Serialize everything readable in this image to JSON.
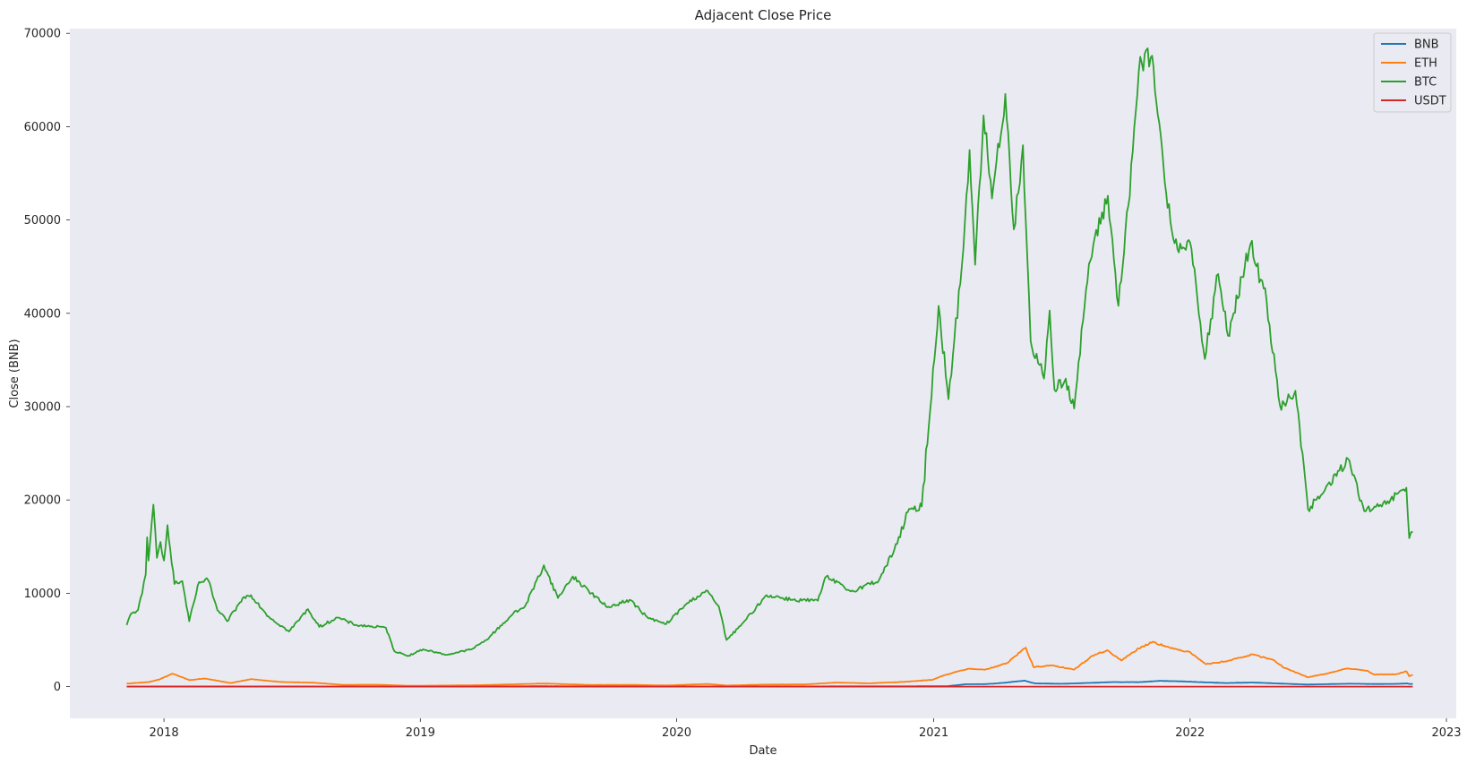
{
  "chart_data": {
    "type": "line",
    "title": "Adjacent Close Price",
    "xlabel": "Date",
    "ylabel": "Close (BNB)",
    "xlim": [
      "2017-08-20",
      "2023-01-15"
    ],
    "ylim": [
      -3400,
      70500
    ],
    "xticks": [
      "2018",
      "2019",
      "2020",
      "2021",
      "2022",
      "2023"
    ],
    "yticks": [
      "0",
      "10000",
      "20000",
      "30000",
      "40000",
      "50000",
      "60000",
      "70000"
    ],
    "grid": false,
    "legend_position": "top-right",
    "background": "#eaeaf2",
    "series": [
      {
        "name": "BNB",
        "color": "#1f77b4",
        "points": [
          [
            "2017-11-09",
            2
          ],
          [
            "2018-01-10",
            20
          ],
          [
            "2018-06-01",
            14
          ],
          [
            "2019-01-01",
            6
          ],
          [
            "2019-06-20",
            33
          ],
          [
            "2020-01-01",
            14
          ],
          [
            "2020-06-01",
            17
          ],
          [
            "2020-12-01",
            30
          ],
          [
            "2021-01-20",
            40
          ],
          [
            "2021-02-15",
            250
          ],
          [
            "2021-03-15",
            260
          ],
          [
            "2021-04-10",
            400
          ],
          [
            "2021-05-10",
            640
          ],
          [
            "2021-05-25",
            340
          ],
          [
            "2021-07-01",
            300
          ],
          [
            "2021-08-15",
            400
          ],
          [
            "2021-09-10",
            480
          ],
          [
            "2021-10-20",
            480
          ],
          [
            "2021-11-20",
            620
          ],
          [
            "2021-12-20",
            560
          ],
          [
            "2022-01-15",
            480
          ],
          [
            "2022-02-20",
            380
          ],
          [
            "2022-03-30",
            440
          ],
          [
            "2022-05-10",
            320
          ],
          [
            "2022-06-18",
            220
          ],
          [
            "2022-08-15",
            310
          ],
          [
            "2022-09-20",
            275
          ],
          [
            "2022-10-20",
            290
          ],
          [
            "2022-11-06",
            340
          ],
          [
            "2022-11-09",
            290
          ],
          [
            "2022-11-14",
            280
          ]
        ]
      },
      {
        "name": "ETH",
        "color": "#ff7f0e",
        "points": [
          [
            "2017-11-09",
            320
          ],
          [
            "2017-12-10",
            480
          ],
          [
            "2017-12-25",
            750
          ],
          [
            "2018-01-13",
            1390
          ],
          [
            "2018-02-06",
            700
          ],
          [
            "2018-03-01",
            860
          ],
          [
            "2018-04-06",
            380
          ],
          [
            "2018-05-05",
            800
          ],
          [
            "2018-06-15",
            500
          ],
          [
            "2018-08-01",
            420
          ],
          [
            "2018-09-12",
            190
          ],
          [
            "2018-11-01",
            200
          ],
          [
            "2018-12-15",
            85
          ],
          [
            "2019-02-01",
            110
          ],
          [
            "2019-04-01",
            160
          ],
          [
            "2019-06-26",
            330
          ],
          [
            "2019-09-01",
            175
          ],
          [
            "2019-11-01",
            180
          ],
          [
            "2019-12-18",
            120
          ],
          [
            "2020-02-14",
            280
          ],
          [
            "2020-03-13",
            110
          ],
          [
            "2020-05-01",
            210
          ],
          [
            "2020-07-01",
            230
          ],
          [
            "2020-08-15",
            430
          ],
          [
            "2020-10-01",
            350
          ],
          [
            "2020-11-20",
            510
          ],
          [
            "2020-12-31",
            740
          ],
          [
            "2021-01-15",
            1200
          ],
          [
            "2021-02-20",
            1930
          ],
          [
            "2021-03-15",
            1800
          ],
          [
            "2021-04-15",
            2500
          ],
          [
            "2021-05-12",
            4170
          ],
          [
            "2021-05-23",
            2100
          ],
          [
            "2021-06-20",
            2250
          ],
          [
            "2021-07-20",
            1820
          ],
          [
            "2021-08-15",
            3300
          ],
          [
            "2021-09-05",
            3900
          ],
          [
            "2021-09-25",
            2800
          ],
          [
            "2021-10-20",
            4100
          ],
          [
            "2021-11-09",
            4810
          ],
          [
            "2021-12-05",
            4100
          ],
          [
            "2022-01-01",
            3700
          ],
          [
            "2022-01-24",
            2400
          ],
          [
            "2022-02-20",
            2700
          ],
          [
            "2022-04-01",
            3450
          ],
          [
            "2022-05-01",
            2800
          ],
          [
            "2022-05-15",
            2000
          ],
          [
            "2022-06-18",
            1000
          ],
          [
            "2022-07-15",
            1400
          ],
          [
            "2022-08-13",
            1950
          ],
          [
            "2022-09-10",
            1700
          ],
          [
            "2022-09-20",
            1300
          ],
          [
            "2022-10-20",
            1300
          ],
          [
            "2022-11-05",
            1640
          ],
          [
            "2022-11-09",
            1100
          ],
          [
            "2022-11-14",
            1250
          ]
        ]
      },
      {
        "name": "BTC",
        "color": "#2ca02c",
        "points": [
          [
            "2017-11-09",
            6600
          ],
          [
            "2017-11-15",
            7800
          ],
          [
            "2017-11-25",
            8200
          ],
          [
            "2017-12-01",
            10000
          ],
          [
            "2017-12-06",
            12000
          ],
          [
            "2017-12-08",
            16000
          ],
          [
            "2017-12-10",
            13500
          ],
          [
            "2017-12-17",
            19500
          ],
          [
            "2017-12-22",
            13800
          ],
          [
            "2017-12-27",
            15500
          ],
          [
            "2018-01-01",
            13500
          ],
          [
            "2018-01-06",
            17300
          ],
          [
            "2018-01-16",
            11000
          ],
          [
            "2018-01-27",
            11300
          ],
          [
            "2018-02-06",
            7000
          ],
          [
            "2018-02-20",
            11200
          ],
          [
            "2018-03-05",
            11400
          ],
          [
            "2018-03-18",
            8200
          ],
          [
            "2018-04-01",
            7000
          ],
          [
            "2018-04-25",
            9600
          ],
          [
            "2018-05-05",
            9800
          ],
          [
            "2018-05-30",
            7500
          ],
          [
            "2018-06-28",
            5900
          ],
          [
            "2018-07-25",
            8300
          ],
          [
            "2018-08-10",
            6400
          ],
          [
            "2018-09-05",
            7400
          ],
          [
            "2018-10-01",
            6600
          ],
          [
            "2018-11-13",
            6300
          ],
          [
            "2018-11-25",
            3800
          ],
          [
            "2018-12-15",
            3300
          ],
          [
            "2019-01-05",
            4000
          ],
          [
            "2019-02-07",
            3400
          ],
          [
            "2019-03-15",
            4000
          ],
          [
            "2019-04-05",
            5000
          ],
          [
            "2019-05-13",
            7800
          ],
          [
            "2019-05-30",
            8600
          ],
          [
            "2019-06-26",
            13000
          ],
          [
            "2019-07-16",
            9500
          ],
          [
            "2019-08-06",
            11800
          ],
          [
            "2019-09-24",
            8500
          ],
          [
            "2019-10-26",
            9300
          ],
          [
            "2019-11-22",
            7300
          ],
          [
            "2019-12-17",
            6700
          ],
          [
            "2020-01-14",
            8800
          ],
          [
            "2020-02-12",
            10300
          ],
          [
            "2020-03-01",
            8600
          ],
          [
            "2020-03-12",
            5000
          ],
          [
            "2020-04-01",
            6500
          ],
          [
            "2020-05-08",
            9800
          ],
          [
            "2020-06-15",
            9300
          ],
          [
            "2020-07-20",
            9200
          ],
          [
            "2020-08-01",
            11800
          ],
          [
            "2020-09-05",
            10200
          ],
          [
            "2020-10-15",
            11400
          ],
          [
            "2020-11-10",
            15300
          ],
          [
            "2020-11-25",
            18700
          ],
          [
            "2020-12-15",
            19300
          ],
          [
            "2021-01-08",
            40800
          ],
          [
            "2021-01-22",
            30800
          ],
          [
            "2021-02-10",
            45000
          ],
          [
            "2021-02-21",
            57500
          ],
          [
            "2021-03-01",
            45200
          ],
          [
            "2021-03-13",
            61200
          ],
          [
            "2021-03-25",
            52300
          ],
          [
            "2021-04-13",
            63500
          ],
          [
            "2021-04-25",
            49000
          ],
          [
            "2021-05-08",
            58000
          ],
          [
            "2021-05-12",
            50000
          ],
          [
            "2021-05-19",
            37000
          ],
          [
            "2021-06-07",
            33000
          ],
          [
            "2021-06-15",
            40300
          ],
          [
            "2021-06-22",
            31800
          ],
          [
            "2021-07-08",
            33000
          ],
          [
            "2021-07-20",
            29800
          ],
          [
            "2021-08-10",
            45300
          ],
          [
            "2021-09-06",
            52600
          ],
          [
            "2021-09-21",
            40800
          ],
          [
            "2021-10-05",
            51500
          ],
          [
            "2021-10-20",
            65900
          ],
          [
            "2021-11-08",
            67600
          ],
          [
            "2021-11-26",
            54000
          ],
          [
            "2021-12-10",
            47500
          ],
          [
            "2022-01-01",
            47600
          ],
          [
            "2022-01-22",
            35100
          ],
          [
            "2022-02-10",
            44200
          ],
          [
            "2022-02-24",
            37600
          ],
          [
            "2022-03-28",
            47400
          ],
          [
            "2022-04-20",
            41300
          ],
          [
            "2022-05-09",
            30100
          ],
          [
            "2022-05-31",
            31700
          ],
          [
            "2022-06-18",
            19000
          ],
          [
            "2022-07-10",
            20800
          ],
          [
            "2022-08-14",
            24400
          ],
          [
            "2022-09-06",
            18800
          ],
          [
            "2022-10-01",
            19300
          ],
          [
            "2022-11-05",
            21300
          ],
          [
            "2022-11-09",
            15900
          ],
          [
            "2022-11-14",
            16600
          ]
        ]
      },
      {
        "name": "USDT",
        "color": "#d62728",
        "points": [
          [
            "2017-11-09",
            1
          ],
          [
            "2022-11-14",
            1
          ]
        ]
      }
    ]
  }
}
